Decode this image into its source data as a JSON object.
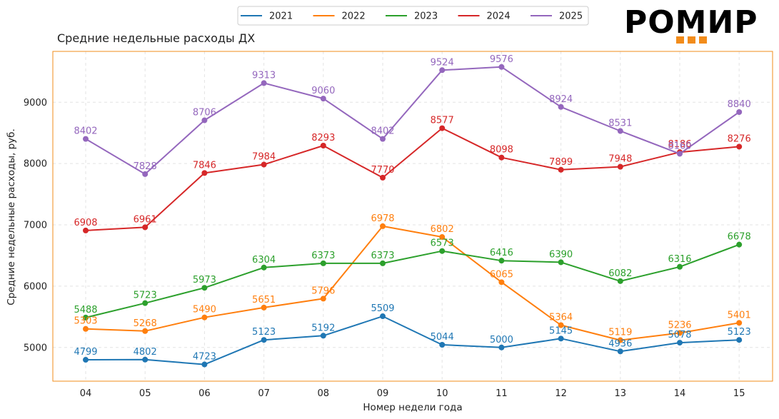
{
  "brand": {
    "logo_text": "РОМИР",
    "accent_color": "#f28c1b"
  },
  "chart_data": {
    "type": "line",
    "title": "Средние недельные расходы ДХ",
    "xlabel": "Номер недели года",
    "ylabel": "Средние недельные расходы, руб.",
    "categories": [
      "04",
      "05",
      "06",
      "07",
      "08",
      "09",
      "10",
      "11",
      "12",
      "13",
      "14",
      "15"
    ],
    "ylim": [
      4450,
      9830
    ],
    "yticks": [
      5000,
      6000,
      7000,
      8000,
      9000
    ],
    "grid": true,
    "legend_position": "top-center",
    "series": [
      {
        "name": "2021",
        "color": "#1f77b4",
        "values": [
          4799,
          4802,
          4723,
          5123,
          5192,
          5509,
          5044,
          5000,
          5145,
          4936,
          5078,
          5123
        ]
      },
      {
        "name": "2022",
        "color": "#ff7f0e",
        "values": [
          5303,
          5268,
          5490,
          5651,
          5796,
          6978,
          6802,
          6065,
          5364,
          5119,
          5236,
          5401
        ]
      },
      {
        "name": "2023",
        "color": "#2ca02c",
        "values": [
          5488,
          5723,
          5973,
          6304,
          6373,
          6373,
          6573,
          6416,
          6390,
          6082,
          6316,
          6678
        ]
      },
      {
        "name": "2024",
        "color": "#d62728",
        "values": [
          6908,
          6961,
          7846,
          7984,
          8293,
          7770,
          8577,
          8098,
          7899,
          7948,
          8186,
          8276
        ]
      },
      {
        "name": "2025",
        "color": "#9467bd",
        "values": [
          8402,
          7828,
          8706,
          9313,
          9060,
          8402,
          9524,
          9576,
          8924,
          8531,
          8160,
          8840
        ]
      }
    ]
  }
}
